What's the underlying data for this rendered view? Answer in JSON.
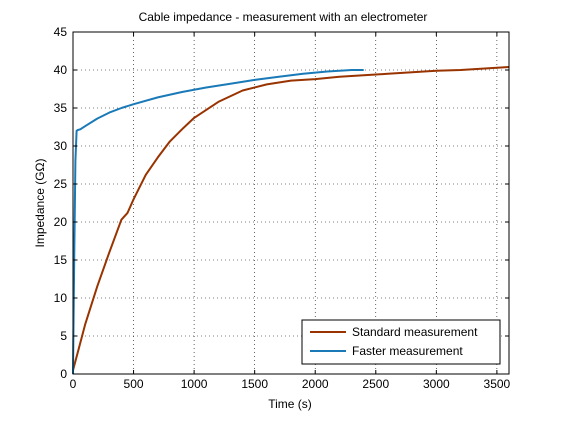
{
  "chart_data": {
    "type": "line",
    "title": "Cable impedance - measurement with an electrometer",
    "xlabel": "Time (s)",
    "ylabel": "Impedance (GΩ)",
    "xlim": [
      0,
      3600
    ],
    "ylim": [
      0,
      45
    ],
    "xticks": [
      0,
      500,
      1000,
      1500,
      2000,
      2500,
      3000,
      3500
    ],
    "yticks": [
      0,
      5,
      10,
      15,
      20,
      25,
      30,
      35,
      40,
      45
    ],
    "grid": true,
    "legend_position": "bottom-right",
    "series": [
      {
        "name": "Standard measurement",
        "color": "#993300",
        "x": [
          0,
          50,
          100,
          200,
          300,
          400,
          450,
          500,
          600,
          700,
          800,
          900,
          1000,
          1200,
          1400,
          1600,
          1800,
          2000,
          2200,
          2400,
          2600,
          2800,
          3000,
          3200,
          3400,
          3600
        ],
        "y": [
          0.5,
          3.5,
          6.5,
          11.5,
          16,
          20.3,
          21.2,
          23,
          26.2,
          28.5,
          30.6,
          32.2,
          33.7,
          35.8,
          37.3,
          38.1,
          38.6,
          38.8,
          39.1,
          39.3,
          39.5,
          39.7,
          39.9,
          40.0,
          40.2,
          40.4
        ]
      },
      {
        "name": "Faster measurement",
        "color": "#1a7ab8",
        "x": [
          0,
          10,
          20,
          30,
          40,
          60,
          100,
          200,
          300,
          400,
          500,
          700,
          900,
          1100,
          1300,
          1500,
          1700,
          1900,
          2100,
          2300,
          2400
        ],
        "y": [
          0,
          15,
          28,
          32,
          32.1,
          32.2,
          32.6,
          33.6,
          34.4,
          35.0,
          35.5,
          36.4,
          37.1,
          37.7,
          38.2,
          38.7,
          39.1,
          39.5,
          39.8,
          40.0,
          40.0
        ]
      }
    ]
  }
}
